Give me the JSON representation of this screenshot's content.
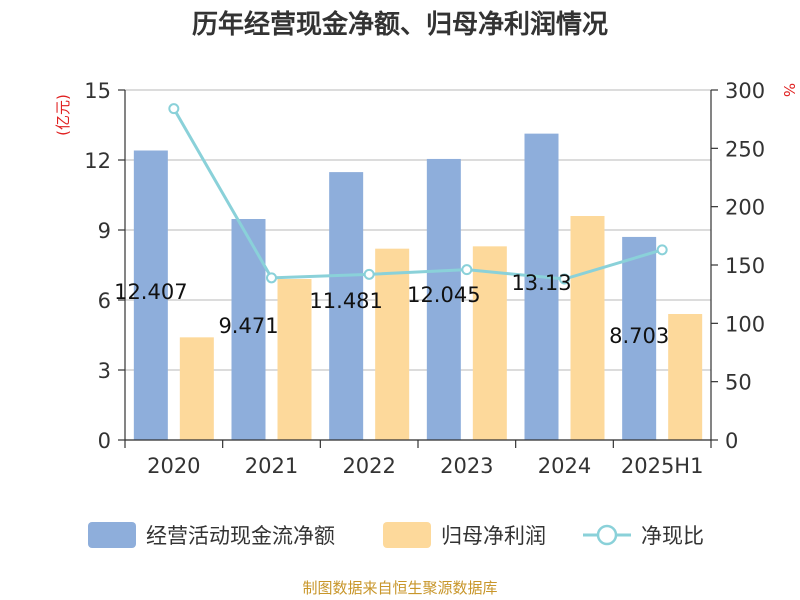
{
  "chart_data": {
    "type": "bar",
    "title": "历年经营现金净额、归母净利润情况",
    "categories": [
      "2020",
      "2021",
      "2022",
      "2023",
      "2024",
      "2025H1"
    ],
    "series": [
      {
        "name": "经营活动现金流净额",
        "type": "bar",
        "axis": "left",
        "values": [
          12.407,
          9.471,
          11.481,
          12.045,
          13.13,
          8.703
        ],
        "labels": [
          "12.407",
          "9.471",
          "11.481",
          "12.045",
          "13.13",
          "8.703"
        ],
        "color": "#8eaedb"
      },
      {
        "name": "归母净利润",
        "type": "bar",
        "axis": "left",
        "values": [
          4.4,
          6.9,
          8.2,
          8.3,
          9.6,
          5.4
        ],
        "color": "#fdd99b"
      },
      {
        "name": "净现比",
        "type": "line",
        "axis": "right",
        "values": [
          284,
          139,
          142,
          146,
          138,
          163
        ],
        "color": "#8ad1d9"
      }
    ],
    "y_left": {
      "label": "(亿元)",
      "ylim": [
        0,
        15
      ],
      "ticks": [
        "0",
        "3",
        "6",
        "9",
        "12",
        "15"
      ]
    },
    "y_right": {
      "label": "%",
      "ylim": [
        0,
        300
      ],
      "ticks": [
        "0",
        "50",
        "100",
        "150",
        "200",
        "250",
        "300"
      ]
    },
    "grid": true,
    "legend_position": "bottom",
    "source": "制图数据来自恒生聚源数据库"
  }
}
